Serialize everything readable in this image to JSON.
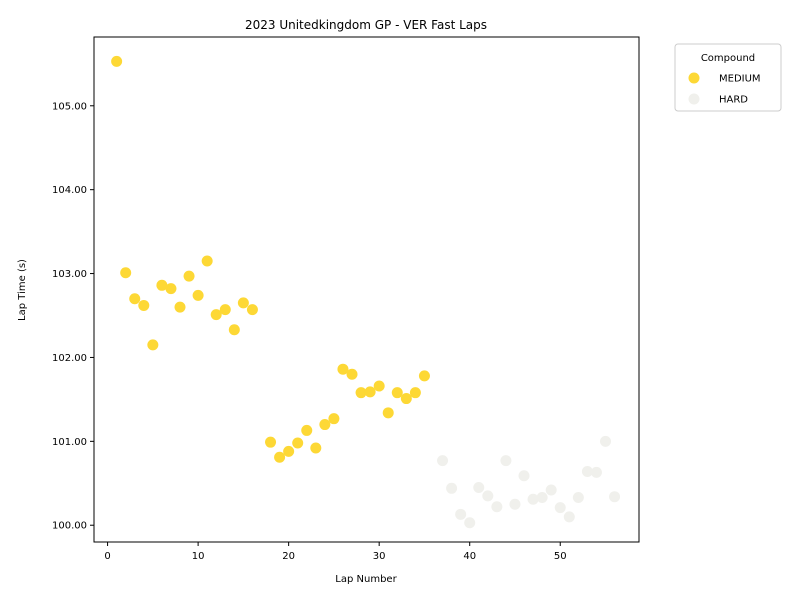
{
  "chart_data": {
    "type": "scatter",
    "title": "2023 Unitedkingdom GP - VER Fast Laps",
    "xlabel": "Lap Number",
    "ylabel": "Lap Time (s)",
    "xlim": [
      -1.5,
      58.7
    ],
    "ylim": [
      99.8,
      105.82
    ],
    "xticks": [
      0,
      10,
      20,
      30,
      40,
      50
    ],
    "yticks": [
      100.0,
      101.0,
      102.0,
      103.0,
      104.0,
      105.0
    ],
    "ytick_labels": [
      "100.00",
      "101.00",
      "102.00",
      "103.00",
      "104.00",
      "105.00"
    ],
    "grid": false,
    "legend": {
      "title": "Compound",
      "placement": "outside-top-right"
    },
    "series": [
      {
        "name": "MEDIUM",
        "color": "#fdd835",
        "points": [
          [
            1,
            105.53
          ],
          [
            2,
            103.01
          ],
          [
            3,
            102.7
          ],
          [
            4,
            102.62
          ],
          [
            5,
            102.15
          ],
          [
            6,
            102.86
          ],
          [
            7,
            102.82
          ],
          [
            8,
            102.6
          ],
          [
            9,
            102.97
          ],
          [
            10,
            102.74
          ],
          [
            11,
            103.15
          ],
          [
            12,
            102.51
          ],
          [
            13,
            102.57
          ],
          [
            14,
            102.33
          ],
          [
            15,
            102.65
          ],
          [
            16,
            102.57
          ],
          [
            18,
            100.99
          ],
          [
            19,
            100.81
          ],
          [
            20,
            100.88
          ],
          [
            21,
            100.98
          ],
          [
            22,
            101.13
          ],
          [
            23,
            100.92
          ],
          [
            24,
            101.2
          ],
          [
            25,
            101.27
          ],
          [
            26,
            101.86
          ],
          [
            27,
            101.8
          ],
          [
            28,
            101.58
          ],
          [
            29,
            101.59
          ],
          [
            30,
            101.66
          ],
          [
            31,
            101.34
          ],
          [
            32,
            101.58
          ],
          [
            33,
            101.51
          ],
          [
            34,
            101.58
          ],
          [
            35,
            101.78
          ]
        ]
      },
      {
        "name": "HARD",
        "color": "#f0f0ec",
        "points": [
          [
            37,
            100.77
          ],
          [
            38,
            100.44
          ],
          [
            39,
            100.13
          ],
          [
            40,
            100.03
          ],
          [
            41,
            100.45
          ],
          [
            42,
            100.35
          ],
          [
            43,
            100.22
          ],
          [
            44,
            100.77
          ],
          [
            45,
            100.25
          ],
          [
            46,
            100.59
          ],
          [
            47,
            100.31
          ],
          [
            48,
            100.33
          ],
          [
            49,
            100.42
          ],
          [
            50,
            100.21
          ],
          [
            51,
            100.1
          ],
          [
            52,
            100.33
          ],
          [
            53,
            100.64
          ],
          [
            54,
            100.63
          ],
          [
            55,
            101.0
          ],
          [
            56,
            100.34
          ]
        ]
      }
    ]
  }
}
